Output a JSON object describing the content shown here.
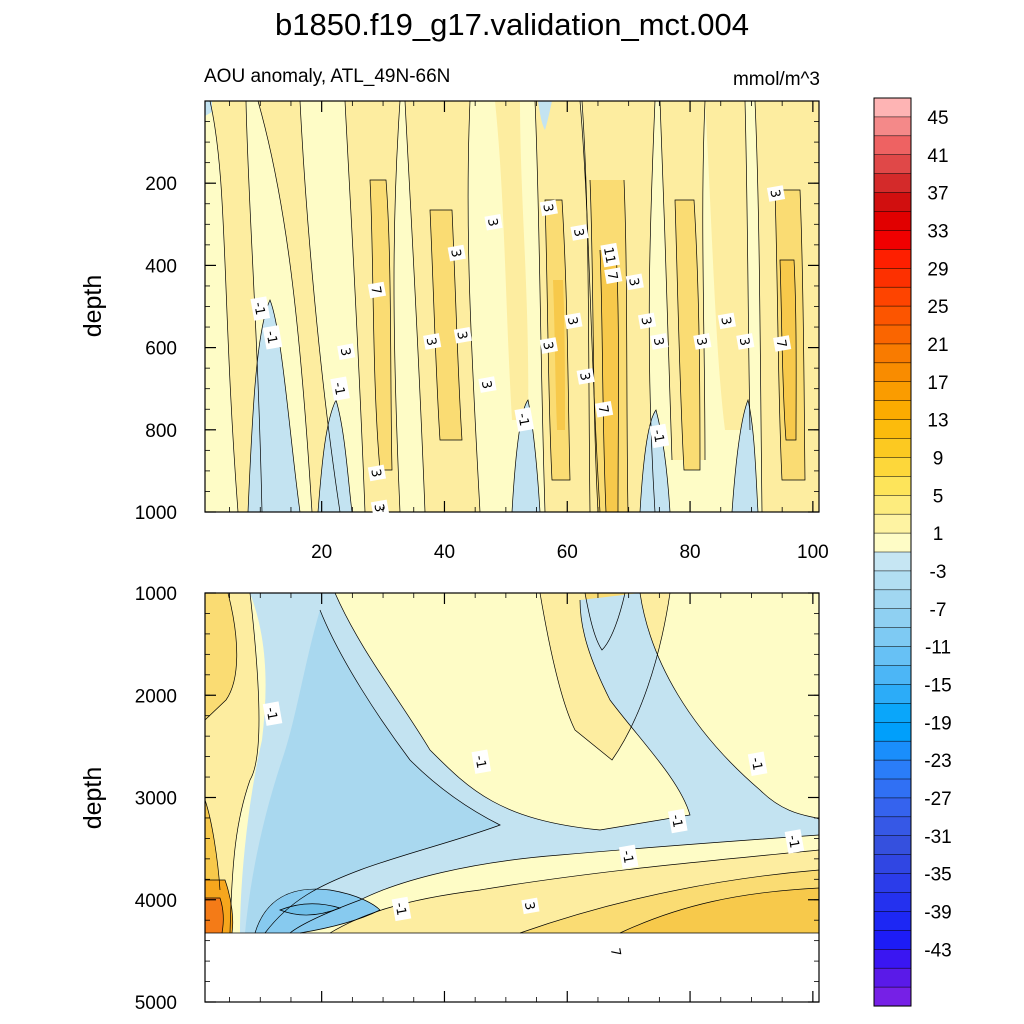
{
  "title": "b1850.f19_g17.validation_mct.004",
  "subtitle_left": "AOU anomaly, ATL_49N-66N",
  "subtitle_right": "mmol/m^3",
  "colors": {
    "fill_pos_light": "#fefcc6",
    "fill_pos_mid": "#fdeda0",
    "fill_pos_strong": "#fadc73",
    "fill_pos_deep": "#f7c94b",
    "fill_orange": "#f6a61d",
    "fill_orange_deep": "#f47b17",
    "fill_neg_light": "#c3e3f1",
    "fill_neg_mid": "#a9d8ef",
    "fill_neg_strong": "#87caef",
    "line": "#000000"
  },
  "chart_data": [
    {
      "type": "contour",
      "name": "upper-panel",
      "xlabel": "",
      "ylabel": "depth",
      "xlim": [
        1,
        101
      ],
      "ylim": [
        1000,
        0
      ],
      "xticks": [
        20,
        40,
        60,
        80,
        100
      ],
      "yticks": [
        200,
        400,
        600,
        800,
        1000
      ],
      "contour_labels": [
        {
          "x": 29.5,
          "y": 990,
          "text": "3"
        },
        {
          "x": 29,
          "y": 905,
          "text": "3"
        },
        {
          "x": 57,
          "y": 260,
          "text": "3"
        },
        {
          "x": 62,
          "y": 320,
          "text": "3"
        },
        {
          "x": 67,
          "y": 375,
          "text": "11"
        },
        {
          "x": 67.5,
          "y": 425,
          "text": "7"
        },
        {
          "x": 71,
          "y": 440,
          "text": "3"
        },
        {
          "x": 94,
          "y": 225,
          "text": "3"
        },
        {
          "x": 48,
          "y": 295,
          "text": "3"
        },
        {
          "x": 42,
          "y": 370,
          "text": "3"
        },
        {
          "x": 29,
          "y": 460,
          "text": "7"
        },
        {
          "x": 10,
          "y": 505,
          "text": "-1"
        },
        {
          "x": 12,
          "y": 575,
          "text": "-1"
        },
        {
          "x": 24,
          "y": 610,
          "text": "3"
        },
        {
          "x": 23,
          "y": 700,
          "text": "-1"
        },
        {
          "x": 38,
          "y": 585,
          "text": "3"
        },
        {
          "x": 43,
          "y": 570,
          "text": "3"
        },
        {
          "x": 47,
          "y": 690,
          "text": "3"
        },
        {
          "x": 53,
          "y": 775,
          "text": "-1"
        },
        {
          "x": 57,
          "y": 595,
          "text": "3"
        },
        {
          "x": 61,
          "y": 535,
          "text": "3"
        },
        {
          "x": 63,
          "y": 670,
          "text": "3"
        },
        {
          "x": 66,
          "y": 750,
          "text": "7"
        },
        {
          "x": 73,
          "y": 535,
          "text": "3"
        },
        {
          "x": 75,
          "y": 585,
          "text": "3"
        },
        {
          "x": 75,
          "y": 815,
          "text": "-1"
        },
        {
          "x": 82,
          "y": 585,
          "text": "3"
        },
        {
          "x": 86,
          "y": 535,
          "text": "3"
        },
        {
          "x": 89,
          "y": 585,
          "text": "3"
        },
        {
          "x": 95,
          "y": 590,
          "text": "7"
        }
      ]
    },
    {
      "type": "contour",
      "name": "lower-panel",
      "xlabel": "",
      "ylabel": "depth",
      "xlim": [
        1,
        101
      ],
      "ylim": [
        5000,
        1000
      ],
      "yticks": [
        1000,
        2000,
        3000,
        4000,
        5000
      ],
      "contour_labels": [
        {
          "x": 12,
          "y": 2180,
          "text": "-1"
        },
        {
          "x": 46,
          "y": 2650,
          "text": "-1"
        },
        {
          "x": 91,
          "y": 2670,
          "text": "-1"
        },
        {
          "x": 78,
          "y": 3230,
          "text": "-1"
        },
        {
          "x": 70,
          "y": 3580,
          "text": "-1"
        },
        {
          "x": 97,
          "y": 3430,
          "text": "-1"
        },
        {
          "x": 33,
          "y": 4090,
          "text": "-1"
        },
        {
          "x": 54,
          "y": 4060,
          "text": "3"
        },
        {
          "x": 68,
          "y": 4510,
          "text": "7"
        }
      ]
    }
  ],
  "colorbar": {
    "labels": [
      "45",
      "41",
      "37",
      "33",
      "29",
      "25",
      "21",
      "17",
      "13",
      "9",
      "5",
      "1",
      "-3",
      "-7",
      "-11",
      "-15",
      "-19",
      "-23",
      "-27",
      "-31",
      "-35",
      "-39",
      "-43"
    ],
    "colors": [
      "#feb4b4",
      "#f48989",
      "#ee6262",
      "#e04848",
      "#d42a2a",
      "#d10f0f",
      "#e10000",
      "#f00000",
      "#fe1f00",
      "#fd3000",
      "#fe4400",
      "#fc5500",
      "#fa6500",
      "#f97b00",
      "#f98c00",
      "#fa9c00",
      "#fbab00",
      "#fcbb0c",
      "#fcc921",
      "#fdd73a",
      "#fde45a",
      "#fdec7e",
      "#fef3a2",
      "#fefcc6",
      "#c6e6f3",
      "#b2def2",
      "#a1d7f1",
      "#8fd0f2",
      "#7ecaf3",
      "#67c1f5",
      "#4cb6f6",
      "#2cacf8",
      "#0aa6fa",
      "#009ffb",
      "#1a8efc",
      "#2a7df8",
      "#3070f4",
      "#3563ee",
      "#3658e6",
      "#3550de",
      "#3046e3",
      "#2b3cea",
      "#2431ef",
      "#1d27f4",
      "#1d1cf6",
      "#3a16f2",
      "#5a1ae8",
      "#7620e6"
    ]
  }
}
